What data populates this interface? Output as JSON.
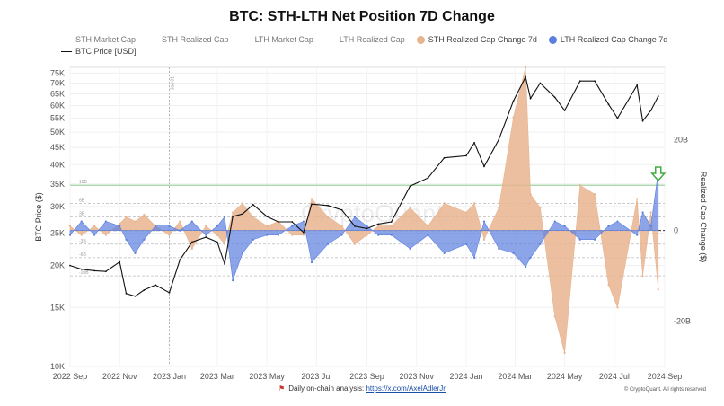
{
  "title": "BTC: STH-LTH Net Position 7D Change",
  "legend": [
    {
      "label": "STH Market Cap",
      "style": "dash",
      "enabled": false
    },
    {
      "label": "STH Realized Cap",
      "style": "line",
      "enabled": false
    },
    {
      "label": "LTH Market Cap",
      "style": "dash",
      "enabled": false
    },
    {
      "label": "LTH Realized Cap",
      "style": "line",
      "enabled": false
    },
    {
      "label": "STH Realized Cap Change 7d",
      "style": "dot",
      "color": "#e8b48f",
      "enabled": true
    },
    {
      "label": "LTH Realized Cap Change 7d",
      "style": "dot",
      "color": "#5b7fe0",
      "enabled": true
    },
    {
      "label": "BTC Price [USD]",
      "style": "line",
      "color": "#111111",
      "enabled": true
    }
  ],
  "footer": {
    "text": "Daily on-chain analysis:",
    "link": "https://x.com/AxelAdlerJr"
  },
  "copyright": "© CryptoQuant. All rights reserved",
  "watermark": "CryptoQuant",
  "chart_data": {
    "type": "line",
    "xlabel": "",
    "ylabel_left": "BTC Price ($)",
    "ylabel_right": "Realized Cap Change ($)",
    "left_scale": "log",
    "left_ylim": [
      10000,
      78000
    ],
    "left_ticks": [
      10000,
      15000,
      20000,
      25000,
      30000,
      35000,
      40000,
      45000,
      50000,
      55000,
      60000,
      65000,
      70000,
      75000
    ],
    "left_tick_labels": [
      "10K",
      "15K",
      "20K",
      "25K",
      "30K",
      "35K",
      "40K",
      "45K",
      "50K",
      "55K",
      "60K",
      "65K",
      "70K",
      "75K"
    ],
    "right_ylim": [
      -30,
      36
    ],
    "right_ticks": [
      20,
      0,
      -20
    ],
    "right_tick_labels": [
      "20B",
      "0",
      "-20B"
    ],
    "x_tick_labels": [
      "2022 Sep",
      "2022 Nov",
      "2023 Jan",
      "2023 Mar",
      "2023 May",
      "2023 Jul",
      "2023 Sep",
      "2023 Nov",
      "2024 Jan",
      "2024 Mar",
      "2024 May",
      "2024 Jul",
      "2024 Sep"
    ],
    "x_range": [
      "2022-09-01",
      "2024-09-01"
    ],
    "vertical_marker": {
      "date": "2023-01-01",
      "label": "Jan 01"
    },
    "reference_lines": [
      {
        "value": 10,
        "label": "10B",
        "color": "#7cc47a"
      },
      {
        "value": 6,
        "label": "6B",
        "color": "#bbbbbb"
      },
      {
        "value": 3,
        "label": "3B",
        "color": "#bbbbbb"
      },
      {
        "value": -3,
        "label": "-3B",
        "color": "#bbbbbb"
      },
      {
        "value": -6,
        "label": "-6B",
        "color": "#bbbbbb"
      },
      {
        "value": -10,
        "label": "-10B",
        "color": "#bbbbbb"
      }
    ],
    "grid": true,
    "legend_position": "top",
    "annotation": {
      "type": "arrow",
      "date": "2024-08-24",
      "color": "#44aa44"
    },
    "series": [
      {
        "name": "BTC Price [USD]",
        "axis": "left",
        "color": "#111111",
        "points": [
          [
            "2022-09-01",
            20000
          ],
          [
            "2022-09-15",
            19500
          ],
          [
            "2022-10-01",
            19300
          ],
          [
            "2022-10-15",
            19200
          ],
          [
            "2022-11-01",
            20500
          ],
          [
            "2022-11-09",
            16500
          ],
          [
            "2022-11-20",
            16200
          ],
          [
            "2022-12-01",
            16900
          ],
          [
            "2022-12-15",
            17500
          ],
          [
            "2023-01-01",
            16600
          ],
          [
            "2023-01-14",
            20800
          ],
          [
            "2023-01-29",
            23500
          ],
          [
            "2023-02-15",
            24300
          ],
          [
            "2023-03-01",
            23500
          ],
          [
            "2023-03-10",
            20200
          ],
          [
            "2023-03-20",
            28000
          ],
          [
            "2023-04-01",
            28500
          ],
          [
            "2023-04-14",
            30400
          ],
          [
            "2023-05-01",
            28000
          ],
          [
            "2023-05-15",
            27000
          ],
          [
            "2023-06-01",
            27000
          ],
          [
            "2023-06-15",
            25100
          ],
          [
            "2023-06-25",
            30500
          ],
          [
            "2023-07-15",
            30200
          ],
          [
            "2023-08-01",
            29300
          ],
          [
            "2023-08-17",
            26200
          ],
          [
            "2023-09-01",
            25800
          ],
          [
            "2023-09-15",
            26600
          ],
          [
            "2023-10-01",
            27000
          ],
          [
            "2023-10-24",
            34500
          ],
          [
            "2023-11-15",
            36500
          ],
          [
            "2023-12-05",
            41900
          ],
          [
            "2024-01-01",
            42500
          ],
          [
            "2024-01-11",
            46500
          ],
          [
            "2024-01-23",
            39500
          ],
          [
            "2024-02-10",
            47500
          ],
          [
            "2024-02-28",
            62000
          ],
          [
            "2024-03-14",
            73000
          ],
          [
            "2024-03-20",
            63000
          ],
          [
            "2024-04-01",
            70000
          ],
          [
            "2024-04-19",
            63500
          ],
          [
            "2024-05-01",
            58000
          ],
          [
            "2024-05-20",
            71000
          ],
          [
            "2024-06-07",
            71000
          ],
          [
            "2024-06-24",
            60500
          ],
          [
            "2024-07-05",
            55000
          ],
          [
            "2024-07-29",
            69000
          ],
          [
            "2024-08-05",
            54000
          ],
          [
            "2024-08-15",
            58000
          ],
          [
            "2024-08-24",
            64000
          ]
        ]
      },
      {
        "name": "STH Realized Cap Change 7d",
        "axis": "right",
        "color": "#e8b48f",
        "points": [
          [
            "2022-09-01",
            1
          ],
          [
            "2022-09-15",
            -1
          ],
          [
            "2022-10-01",
            1
          ],
          [
            "2022-10-15",
            -1
          ],
          [
            "2022-11-01",
            1.5
          ],
          [
            "2022-11-09",
            3
          ],
          [
            "2022-11-20",
            2
          ],
          [
            "2022-12-01",
            3.5
          ],
          [
            "2022-12-15",
            1
          ],
          [
            "2023-01-01",
            -1
          ],
          [
            "2023-01-14",
            2
          ],
          [
            "2023-01-29",
            -4
          ],
          [
            "2023-02-15",
            1
          ],
          [
            "2023-03-01",
            -1
          ],
          [
            "2023-03-10",
            -3
          ],
          [
            "2023-03-20",
            4
          ],
          [
            "2023-04-01",
            6
          ],
          [
            "2023-04-14",
            3
          ],
          [
            "2023-05-01",
            1
          ],
          [
            "2023-05-15",
            2
          ],
          [
            "2023-06-01",
            -1
          ],
          [
            "2023-06-15",
            -1
          ],
          [
            "2023-06-25",
            7
          ],
          [
            "2023-07-15",
            3
          ],
          [
            "2023-08-01",
            1
          ],
          [
            "2023-08-17",
            -3
          ],
          [
            "2023-09-01",
            -1
          ],
          [
            "2023-09-15",
            1
          ],
          [
            "2023-10-01",
            1
          ],
          [
            "2023-10-24",
            5
          ],
          [
            "2023-11-15",
            1
          ],
          [
            "2023-12-05",
            6
          ],
          [
            "2024-01-01",
            4
          ],
          [
            "2024-01-11",
            6
          ],
          [
            "2024-01-23",
            -2
          ],
          [
            "2024-02-10",
            5
          ],
          [
            "2024-02-28",
            25
          ],
          [
            "2024-03-14",
            36
          ],
          [
            "2024-03-20",
            8
          ],
          [
            "2024-04-01",
            5
          ],
          [
            "2024-04-19",
            -19
          ],
          [
            "2024-05-01",
            -27
          ],
          [
            "2024-05-20",
            10
          ],
          [
            "2024-06-07",
            8
          ],
          [
            "2024-06-24",
            -12
          ],
          [
            "2024-07-05",
            -17
          ],
          [
            "2024-07-29",
            7
          ],
          [
            "2024-08-05",
            -10
          ],
          [
            "2024-08-15",
            4
          ],
          [
            "2024-08-24",
            -13
          ]
        ]
      },
      {
        "name": "LTH Realized Cap Change 7d",
        "axis": "right",
        "color": "#5b7fe0",
        "points": [
          [
            "2022-09-01",
            -1
          ],
          [
            "2022-09-15",
            2
          ],
          [
            "2022-10-01",
            -1
          ],
          [
            "2022-10-15",
            2
          ],
          [
            "2022-11-01",
            1
          ],
          [
            "2022-11-09",
            -2
          ],
          [
            "2022-11-20",
            -5
          ],
          [
            "2022-12-01",
            -2
          ],
          [
            "2022-12-15",
            1
          ],
          [
            "2023-01-01",
            1
          ],
          [
            "2023-01-14",
            0
          ],
          [
            "2023-01-29",
            2
          ],
          [
            "2023-02-15",
            -1
          ],
          [
            "2023-03-01",
            1
          ],
          [
            "2023-03-10",
            3
          ],
          [
            "2023-03-20",
            -11
          ],
          [
            "2023-04-01",
            -5
          ],
          [
            "2023-04-14",
            -2
          ],
          [
            "2023-05-01",
            -1
          ],
          [
            "2023-05-15",
            -1
          ],
          [
            "2023-06-01",
            1
          ],
          [
            "2023-06-15",
            2
          ],
          [
            "2023-06-25",
            -7
          ],
          [
            "2023-07-15",
            -3
          ],
          [
            "2023-08-01",
            -1
          ],
          [
            "2023-08-17",
            3
          ],
          [
            "2023-09-01",
            1
          ],
          [
            "2023-09-15",
            -1
          ],
          [
            "2023-10-01",
            -1
          ],
          [
            "2023-10-24",
            -4
          ],
          [
            "2023-11-15",
            -1
          ],
          [
            "2023-12-05",
            -5
          ],
          [
            "2024-01-01",
            -3
          ],
          [
            "2024-01-11",
            -6
          ],
          [
            "2024-01-23",
            2
          ],
          [
            "2024-02-10",
            -4
          ],
          [
            "2024-02-28",
            -5
          ],
          [
            "2024-03-14",
            -8
          ],
          [
            "2024-03-20",
            -6
          ],
          [
            "2024-04-01",
            -3
          ],
          [
            "2024-04-19",
            2
          ],
          [
            "2024-05-01",
            1
          ],
          [
            "2024-05-20",
            -2
          ],
          [
            "2024-06-07",
            -2
          ],
          [
            "2024-06-24",
            1
          ],
          [
            "2024-07-05",
            2
          ],
          [
            "2024-07-29",
            -1
          ],
          [
            "2024-08-05",
            4
          ],
          [
            "2024-08-15",
            1
          ],
          [
            "2024-08-24",
            13
          ]
        ]
      }
    ]
  }
}
